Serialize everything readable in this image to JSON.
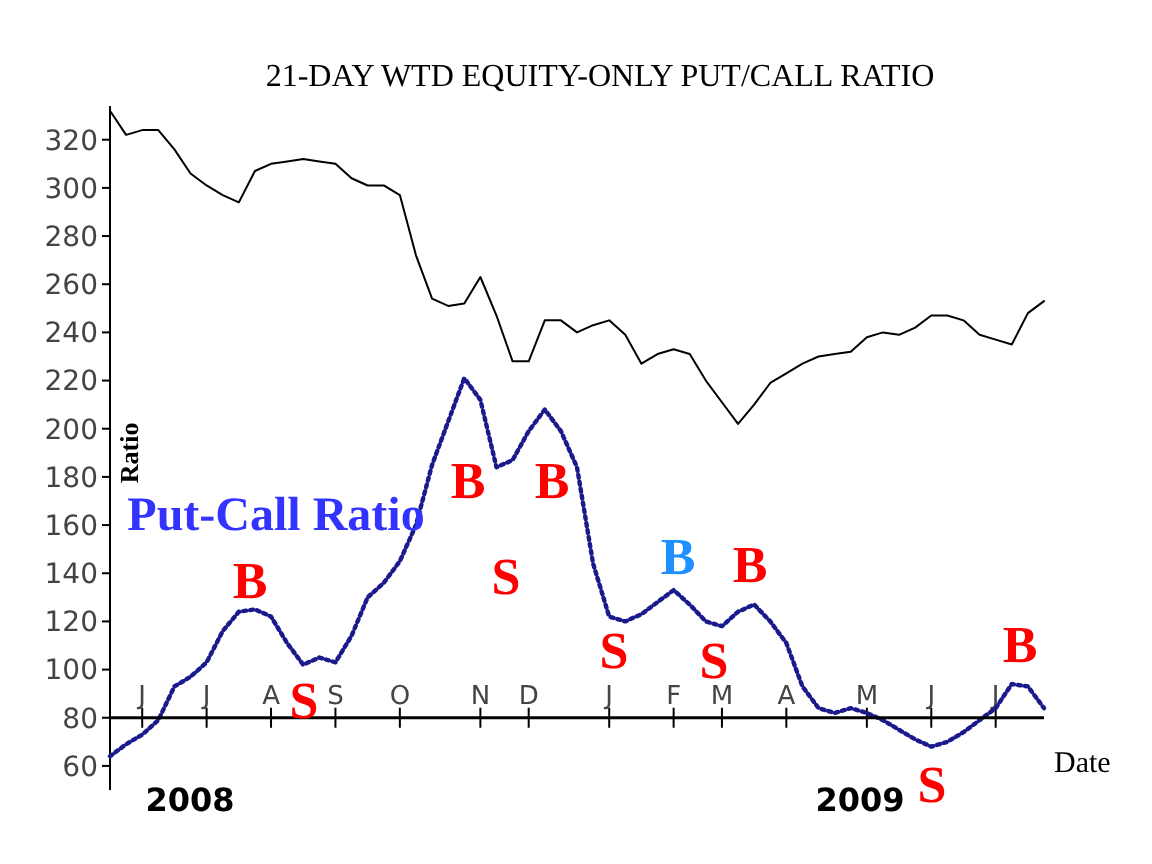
{
  "chart_data": {
    "type": "line",
    "title": "21-DAY WTD EQUITY-ONLY PUT/CALL RATIO",
    "xlabel": "Date",
    "ylabel": "Ratio",
    "categories": [
      null,
      null,
      "J",
      null,
      null,
      null,
      "J",
      null,
      null,
      null,
      "A",
      null,
      null,
      null,
      "S",
      null,
      null,
      null,
      "O",
      null,
      null,
      null,
      null,
      "N",
      null,
      null,
      "D",
      null,
      null,
      null,
      null,
      "J",
      null,
      null,
      null,
      "F",
      null,
      null,
      "M",
      null,
      null,
      null,
      "A",
      null,
      null,
      null,
      null,
      "M",
      null,
      null,
      null,
      "J",
      null,
      null,
      null,
      "J",
      null,
      null,
      null
    ],
    "ylim": [
      50,
      334
    ],
    "yticks": [
      60,
      80,
      100,
      120,
      140,
      160,
      180,
      200,
      220,
      240,
      260,
      280,
      300,
      320
    ],
    "grid": false,
    "legend": false,
    "series": [
      {
        "color": "#000000",
        "line_style": "solid",
        "values": [
          332,
          322,
          324,
          324,
          316,
          306,
          301,
          297,
          294,
          307,
          310,
          311,
          312,
          311,
          310,
          304,
          301,
          301,
          297,
          272,
          254,
          251,
          252,
          263,
          247,
          228,
          228,
          245,
          245,
          240,
          243,
          245,
          239,
          227,
          231,
          233,
          231,
          220,
          211,
          202,
          210,
          219,
          223,
          227,
          230,
          231,
          232,
          238,
          240,
          239,
          242,
          247,
          247,
          245,
          239,
          237,
          235,
          248,
          253
        ]
      },
      {
        "name": "Put-Call Ratio",
        "color": "#1a1a8c",
        "line_style": "dotted",
        "values": [
          64,
          69,
          73,
          79,
          93,
          97,
          103,
          116,
          124,
          125,
          122,
          111,
          102,
          105,
          103,
          114,
          130,
          136,
          145,
          160,
          185,
          203,
          221,
          212,
          184,
          187,
          199,
          208,
          199,
          184,
          144,
          122,
          120,
          123,
          128,
          133,
          127,
          120,
          118,
          124,
          127,
          120,
          111,
          93,
          84,
          82,
          84,
          82,
          79,
          75,
          71,
          68,
          70,
          74,
          79,
          84,
          94,
          93,
          84
        ]
      }
    ],
    "annotations": [
      "B",
      "S",
      "B",
      "S",
      "B",
      "S",
      "B",
      "S",
      "B",
      "S",
      "B",
      "2008",
      "2009"
    ]
  }
}
